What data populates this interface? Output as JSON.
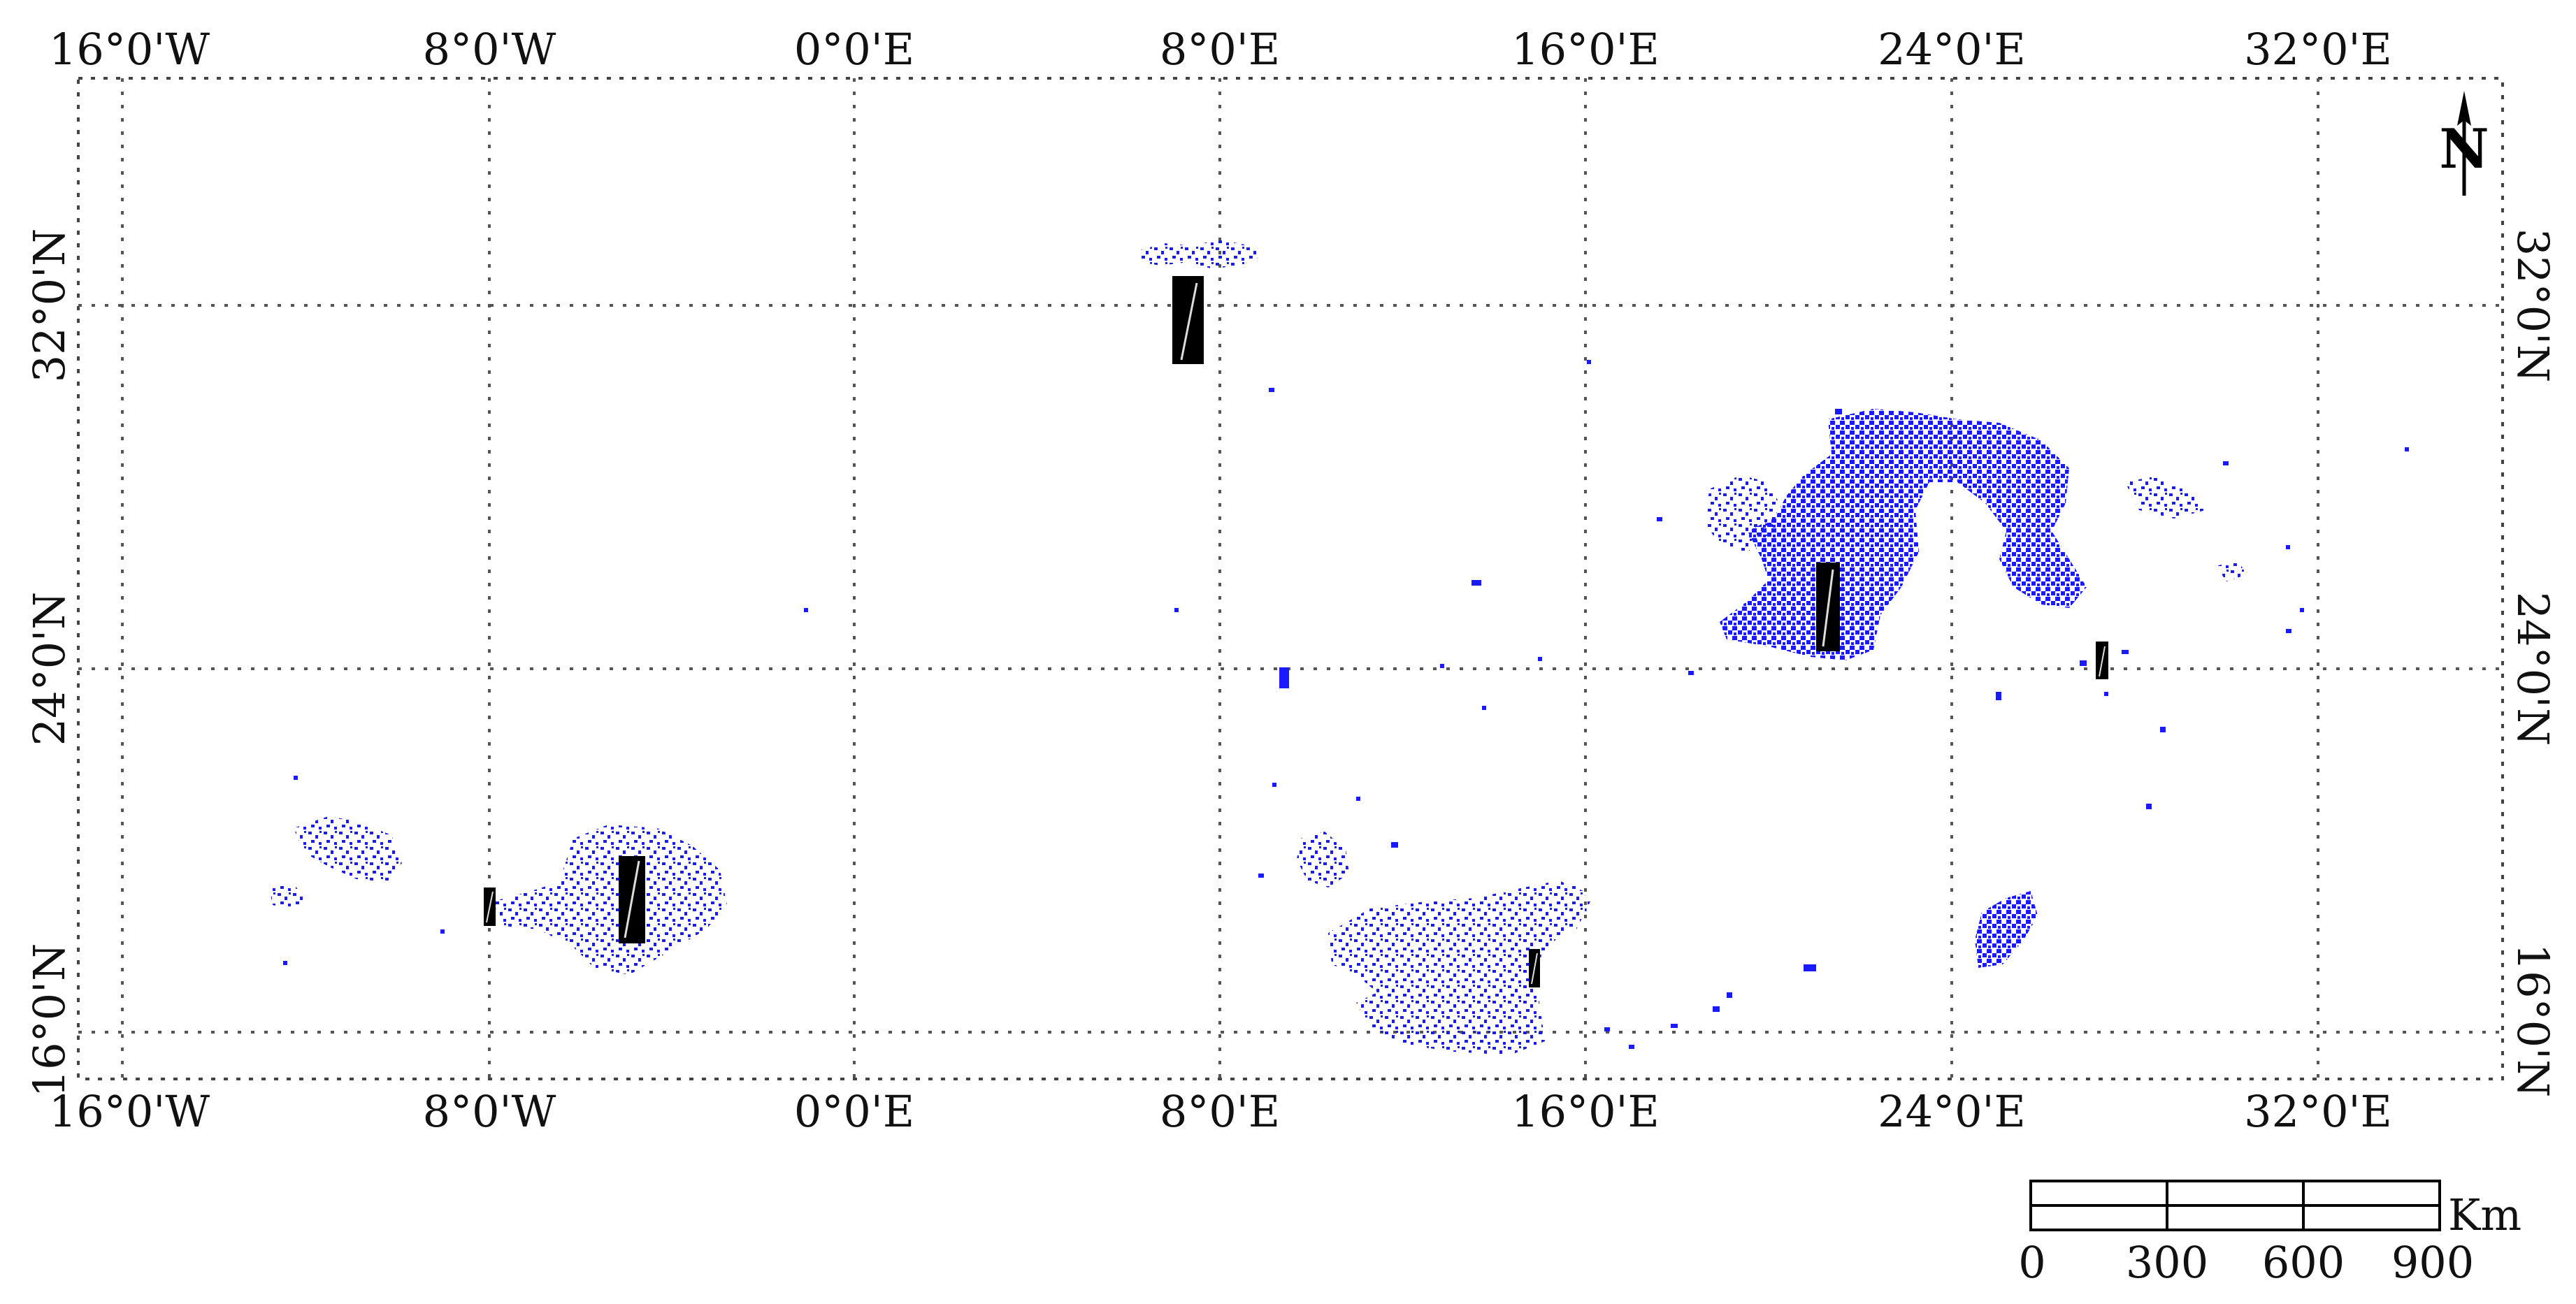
{
  "map": {
    "longitude_labels": [
      "16°0'W",
      "8°0'W",
      "0°0'E",
      "8°0'E",
      "16°0'E",
      "24°0'E",
      "32°0'E"
    ],
    "latitude_labels": [
      "32°0'N",
      "24°0'N",
      "16°0'N"
    ],
    "north_arrow": {
      "label": "N",
      "icon": "north-arrow-icon"
    },
    "scale_bar": {
      "unit": "Km",
      "ticks": [
        "0",
        "300",
        "600",
        "900"
      ]
    },
    "colors": {
      "detections": "#1a1aff",
      "sites": "#000000",
      "grid": "#555555",
      "frame": "#444444"
    }
  }
}
